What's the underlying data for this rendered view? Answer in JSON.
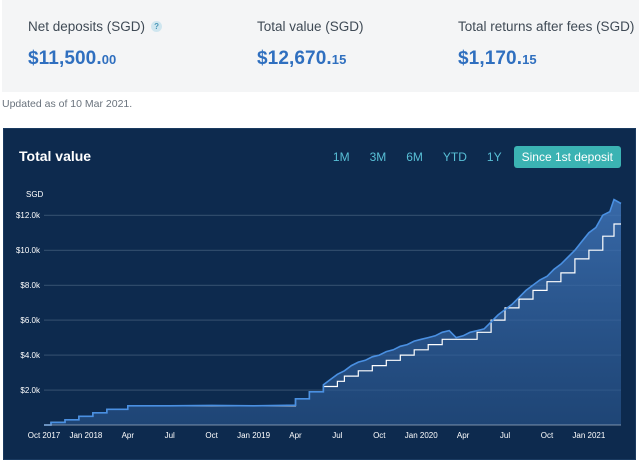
{
  "summary": {
    "net_deposits": {
      "label": "Net deposits (SGD)",
      "help": "?",
      "value_main": "$11,500.",
      "value_dec": "00"
    },
    "total_value": {
      "label": "Total value (SGD)",
      "value_main": "$12,670.",
      "value_dec": "15"
    },
    "total_returns": {
      "label": "Total returns after fees (SGD)",
      "value_main": "$1,170.",
      "value_dec": "15"
    }
  },
  "updated": "Updated as of 10 Mar 2021.",
  "chart_card": {
    "title": "Total value",
    "ranges": [
      "1M",
      "3M",
      "6M",
      "YTD",
      "1Y",
      "Since 1st deposit"
    ],
    "active_range": "Since 1st deposit"
  },
  "colors": {
    "accent": "#2f6fbf",
    "background": "#0d2a4e",
    "active_tab": "#3bb3b3",
    "line": "#4a90e2"
  },
  "chart_data": {
    "type": "area",
    "ylabel": "SGD",
    "ylim": [
      0,
      13500
    ],
    "y_ticks": [
      "$2.0k",
      "$4.0k",
      "$6.0k",
      "$8.0k",
      "$10.0k",
      "$12.0k"
    ],
    "y_tick_values": [
      2000,
      4000,
      6000,
      8000,
      10000,
      12000
    ],
    "x_ticks": [
      "Oct 2017",
      "Jan 2018",
      "Apr",
      "Jul",
      "Oct",
      "Jan 2019",
      "Apr",
      "Jul",
      "Oct",
      "Jan 2020",
      "Apr",
      "Jul",
      "Oct",
      "Jan 2021"
    ],
    "x_tick_months": [
      0,
      3,
      6,
      9,
      12,
      15,
      18,
      21,
      24,
      27,
      30,
      33,
      36,
      39
    ],
    "x_range_months": [
      0,
      41.3
    ],
    "grid": true,
    "series": [
      {
        "name": "Total value",
        "points": [
          [
            0,
            0
          ],
          [
            0.5,
            0
          ],
          [
            0.5,
            150
          ],
          [
            1.5,
            150
          ],
          [
            1.5,
            300
          ],
          [
            2.5,
            300
          ],
          [
            2.5,
            500
          ],
          [
            3.5,
            500
          ],
          [
            3.5,
            700
          ],
          [
            4.5,
            700
          ],
          [
            4.5,
            900
          ],
          [
            6,
            900
          ],
          [
            6,
            1100
          ],
          [
            9,
            1100
          ],
          [
            12,
            1120
          ],
          [
            15,
            1100
          ],
          [
            18,
            1130
          ],
          [
            18,
            1500
          ],
          [
            19,
            1500
          ],
          [
            19,
            1900
          ],
          [
            20,
            1900
          ],
          [
            20,
            2300
          ],
          [
            20.5,
            2600
          ],
          [
            21,
            2900
          ],
          [
            21.5,
            3100
          ],
          [
            22,
            3400
          ],
          [
            22.5,
            3600
          ],
          [
            23,
            3700
          ],
          [
            23.5,
            3900
          ],
          [
            24,
            4000
          ],
          [
            24.5,
            4200
          ],
          [
            25,
            4300
          ],
          [
            25.5,
            4500
          ],
          [
            26,
            4600
          ],
          [
            26.5,
            4800
          ],
          [
            27,
            4900
          ],
          [
            27.5,
            5000
          ],
          [
            28,
            5100
          ],
          [
            28.5,
            5300
          ],
          [
            29,
            5400
          ],
          [
            29.5,
            5000
          ],
          [
            30,
            5100
          ],
          [
            30.5,
            5300
          ],
          [
            31,
            5400
          ],
          [
            31.5,
            5500
          ],
          [
            32,
            5900
          ],
          [
            32.5,
            6300
          ],
          [
            33,
            6600
          ],
          [
            33.5,
            6900
          ],
          [
            34,
            7300
          ],
          [
            34.5,
            7700
          ],
          [
            35,
            8000
          ],
          [
            35.5,
            8300
          ],
          [
            36,
            8500
          ],
          [
            36.5,
            8900
          ],
          [
            37,
            9200
          ],
          [
            37.5,
            9600
          ],
          [
            38,
            10000
          ],
          [
            38.5,
            10500
          ],
          [
            39,
            11000
          ],
          [
            39.5,
            11300
          ],
          [
            40,
            12000
          ],
          [
            40.5,
            12200
          ],
          [
            40.8,
            12900
          ],
          [
            41.3,
            12670
          ]
        ]
      },
      {
        "name": "Net deposits",
        "points": [
          [
            0,
            0
          ],
          [
            0.5,
            0
          ],
          [
            0.5,
            150
          ],
          [
            1.5,
            150
          ],
          [
            1.5,
            300
          ],
          [
            2.5,
            300
          ],
          [
            2.5,
            500
          ],
          [
            3.5,
            500
          ],
          [
            3.5,
            700
          ],
          [
            4.5,
            700
          ],
          [
            4.5,
            900
          ],
          [
            6,
            900
          ],
          [
            6,
            1100
          ],
          [
            18,
            1100
          ],
          [
            18,
            1500
          ],
          [
            19,
            1500
          ],
          [
            19,
            1900
          ],
          [
            20,
            1900
          ],
          [
            20,
            2200
          ],
          [
            21,
            2200
          ],
          [
            21,
            2500
          ],
          [
            21.5,
            2500
          ],
          [
            21.5,
            2800
          ],
          [
            22.5,
            2800
          ],
          [
            22.5,
            3100
          ],
          [
            23.5,
            3100
          ],
          [
            23.5,
            3400
          ],
          [
            24.5,
            3400
          ],
          [
            24.5,
            3700
          ],
          [
            25.5,
            3700
          ],
          [
            25.5,
            4000
          ],
          [
            26.5,
            4000
          ],
          [
            26.5,
            4300
          ],
          [
            27.5,
            4300
          ],
          [
            27.5,
            4600
          ],
          [
            28.5,
            4600
          ],
          [
            28.5,
            4900
          ],
          [
            31,
            4900
          ],
          [
            31,
            5300
          ],
          [
            32,
            5300
          ],
          [
            32,
            6000
          ],
          [
            33,
            6000
          ],
          [
            33,
            6700
          ],
          [
            34,
            6700
          ],
          [
            34,
            7200
          ],
          [
            35,
            7200
          ],
          [
            35,
            7700
          ],
          [
            36,
            7700
          ],
          [
            36,
            8200
          ],
          [
            37,
            8200
          ],
          [
            37,
            8700
          ],
          [
            38,
            8700
          ],
          [
            38,
            9500
          ],
          [
            39,
            9500
          ],
          [
            39,
            10000
          ],
          [
            40,
            10000
          ],
          [
            40,
            10800
          ],
          [
            40.8,
            10800
          ],
          [
            40.8,
            11500
          ],
          [
            41.3,
            11500
          ]
        ]
      }
    ]
  }
}
